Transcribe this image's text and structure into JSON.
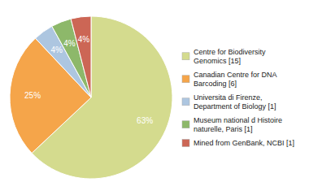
{
  "chart_data": {
    "type": "pie",
    "categories": [
      "Centre for Biodiversity\nGenomics [15]",
      "Canadian Centre for DNA\nBarcoding [6]",
      "Universita di Firenze,\nDepartment of Biology [1]",
      "Museum national d Histoire\nnaturelle, Paris [1]",
      "Mined from GenBank, NCBI [1]"
    ],
    "values": [
      63,
      25,
      4,
      4,
      4
    ],
    "value_labels": [
      "63%",
      "25%",
      "4%",
      "4%",
      "4%"
    ],
    "colors": [
      "#d4db8e",
      "#f5a54a",
      "#adc6e0",
      "#8db86a",
      "#cc6655"
    ],
    "data_labels": true,
    "legend": "right"
  }
}
